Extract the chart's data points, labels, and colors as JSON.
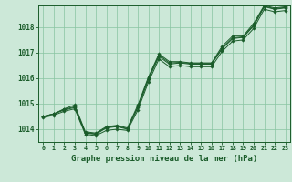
{
  "title": "Graphe pression niveau de la mer (hPa)",
  "background_color": "#cce8d8",
  "plot_bg_color": "#cce8d8",
  "grid_color": "#88c4a0",
  "line_color": "#1a5c2a",
  "marker_color": "#1a5c2a",
  "hours": [
    0,
    1,
    2,
    3,
    4,
    5,
    6,
    7,
    8,
    9,
    10,
    11,
    12,
    13,
    14,
    15,
    16,
    17,
    18,
    19,
    20,
    21,
    22,
    23
  ],
  "pressure_main": [
    1014.5,
    1014.6,
    1014.75,
    1014.85,
    1013.85,
    1013.8,
    1014.05,
    1014.1,
    1014.0,
    1014.85,
    1015.95,
    1016.85,
    1016.55,
    1016.6,
    1016.55,
    1016.55,
    1016.55,
    1017.15,
    1017.55,
    1017.6,
    1018.05,
    1018.8,
    1018.7,
    1018.75
  ],
  "pressure_high": [
    1014.5,
    1014.6,
    1014.8,
    1014.95,
    1013.9,
    1013.85,
    1014.1,
    1014.15,
    1014.05,
    1014.95,
    1016.05,
    1016.95,
    1016.65,
    1016.65,
    1016.6,
    1016.6,
    1016.6,
    1017.25,
    1017.65,
    1017.65,
    1018.15,
    1018.85,
    1018.75,
    1018.8
  ],
  "pressure_low": [
    1014.45,
    1014.55,
    1014.7,
    1014.8,
    1013.8,
    1013.75,
    1013.95,
    1014.0,
    1013.95,
    1014.75,
    1015.85,
    1016.75,
    1016.45,
    1016.5,
    1016.45,
    1016.45,
    1016.45,
    1017.05,
    1017.45,
    1017.5,
    1017.95,
    1018.7,
    1018.6,
    1018.65
  ],
  "pressure_extra": [
    1014.5,
    1014.6,
    1014.78,
    1014.88,
    1013.87,
    1013.82,
    1014.07,
    1014.12,
    1014.02,
    1014.88,
    1016.0,
    1016.9,
    1016.6,
    1016.62,
    1016.58,
    1016.58,
    1016.58,
    1017.18,
    1017.58,
    1017.62,
    1018.08,
    1018.82,
    1018.72,
    1018.77
  ],
  "ylim": [
    1013.5,
    1018.85
  ],
  "yticks": [
    1014,
    1015,
    1016,
    1017,
    1018
  ],
  "xlim": [
    -0.5,
    23.5
  ]
}
